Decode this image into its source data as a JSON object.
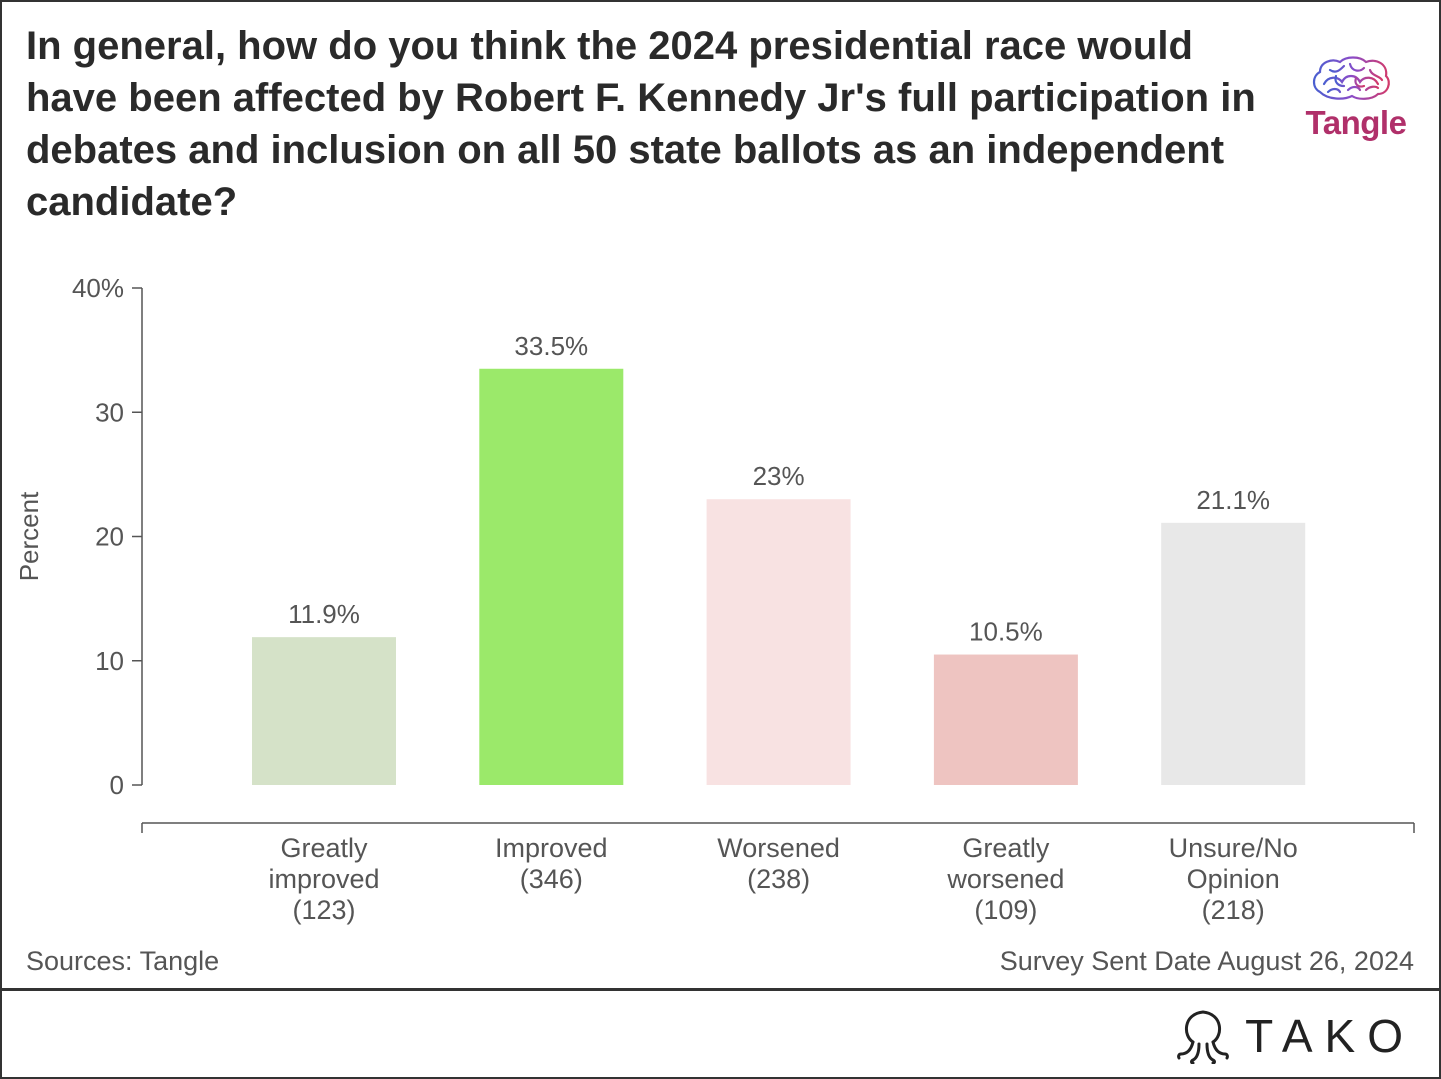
{
  "title": "In general, how do you think the 2024 presidential race would have been affected by Robert F. Kennedy Jr's full participation in debates and inclusion on all 50 state ballots as an independent candidate?",
  "brand": {
    "name": "Tangle",
    "icon": "brain-icon"
  },
  "footer": {
    "source": "Sources: Tangle",
    "note": "Survey Sent Date August 26, 2024"
  },
  "watermark": {
    "text": "TAKO",
    "icon": "octopus-icon"
  },
  "colors": {
    "title": "#2a2a2a",
    "axis": "#555555",
    "brand": "#b0306a"
  },
  "chart_data": {
    "type": "bar",
    "title": "In general, how do you think the 2024 presidential race would have been affected by Robert F. Kennedy Jr's full participation in debates and inclusion on all 50 state ballots as an independent candidate?",
    "xlabel": "",
    "ylabel": "Percent",
    "ylim": [
      0,
      40
    ],
    "yticks": [
      0,
      10,
      20,
      30,
      40
    ],
    "ytick_labels": [
      "0",
      "10",
      "20",
      "30",
      "40%"
    ],
    "grid": false,
    "legend": "none",
    "categories": [
      [
        "Greatly",
        "improved",
        "(123)"
      ],
      [
        "Improved",
        "(346)"
      ],
      [
        "Worsened",
        "(238)"
      ],
      [
        "Greatly",
        "worsened",
        "(109)"
      ],
      [
        "Unsure/No",
        "Opinion",
        "(218)"
      ]
    ],
    "values": [
      11.9,
      33.5,
      23,
      10.5,
      21.1
    ],
    "value_labels": [
      "11.9%",
      "33.5%",
      "23%",
      "10.5%",
      "21.1%"
    ],
    "bar_colors": [
      "#d5e2c8",
      "#9be96a",
      "#f8e2e2",
      "#eec4c1",
      "#e8e8e8"
    ]
  }
}
